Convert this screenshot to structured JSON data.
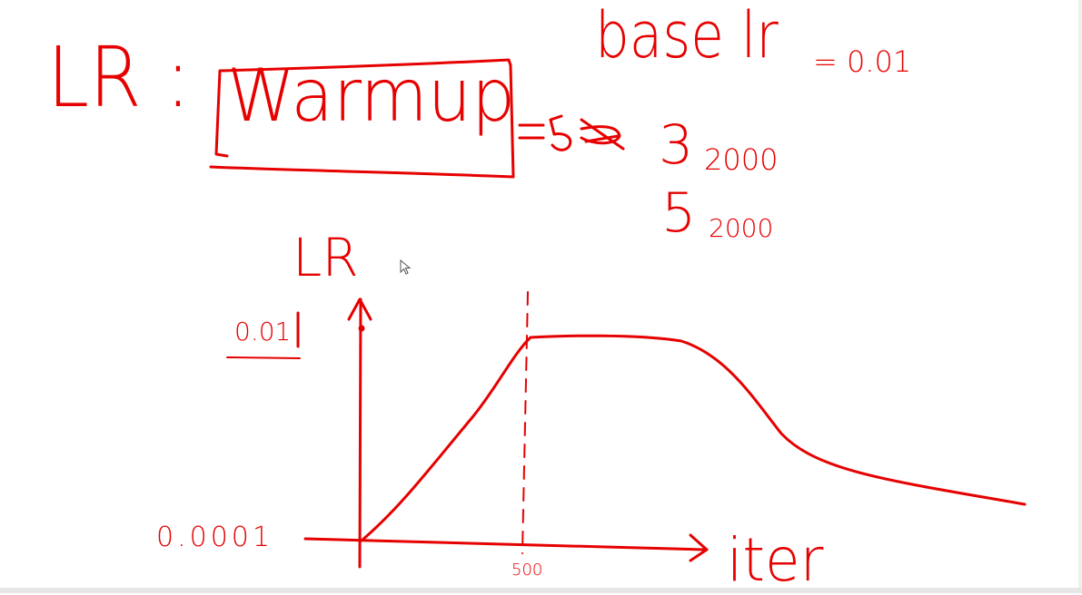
{
  "title_label": "LR :",
  "boxed_word": "Warmup",
  "base_lr": {
    "label": "base lr",
    "value": "= 0.01"
  },
  "warmup_steps": {
    "symbol": "= 5",
    "alt_label": "3",
    "alt_value": "2000",
    "label": "5",
    "value": "2000"
  },
  "chart": {
    "y_axis_label": "LR",
    "y_tick_top": "0.01",
    "y_tick_bottom": "0.0001",
    "x_marker_label": "500",
    "x_axis_label": "iter"
  },
  "colors": {
    "ink": "#e60000",
    "background": "#ffffff"
  }
}
